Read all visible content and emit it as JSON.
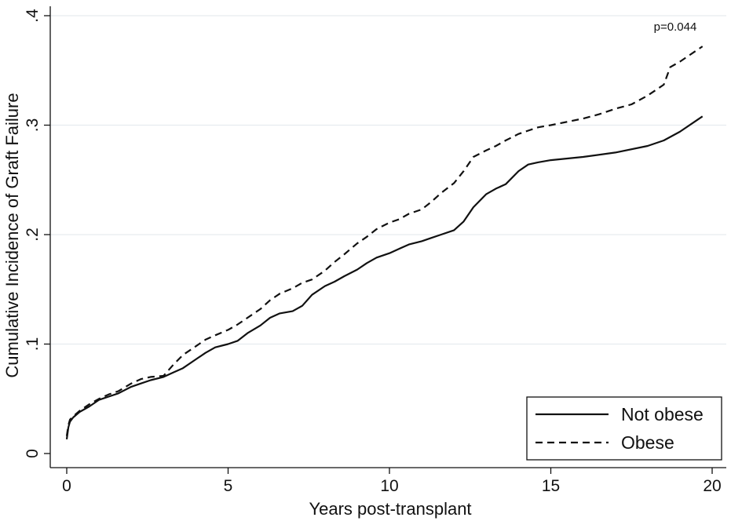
{
  "chart_data": {
    "type": "line",
    "title": "",
    "xlabel": "Years post-transplant",
    "ylabel": "Cumulative Incidence of Graft Failure",
    "xlim": [
      -0.1,
      20.5
    ],
    "ylim": [
      -0.01,
      0.42
    ],
    "x_ticks": [
      0,
      5,
      10,
      15,
      20
    ],
    "x_tick_labels": [
      "0",
      "5",
      "10",
      "15",
      "20"
    ],
    "y_ticks": [
      0,
      0.1,
      0.2,
      0.3,
      0.4
    ],
    "y_tick_labels": [
      "0",
      ".1",
      ".2",
      ".3",
      ".4"
    ],
    "grid": "horizontal",
    "legend_position": "bottom-right",
    "annotation": "p=0.044",
    "series": [
      {
        "name": "Not obese",
        "style": "solid",
        "x": [
          0,
          0.05,
          0.1,
          0.2,
          0.4,
          0.7,
          1.0,
          1.3,
          1.6,
          2.0,
          2.3,
          2.6,
          3.0,
          3.3,
          3.6,
          4.0,
          4.3,
          4.6,
          5.0,
          5.3,
          5.6,
          6.0,
          6.3,
          6.6,
          7.0,
          7.3,
          7.6,
          8.0,
          8.3,
          8.6,
          9.0,
          9.3,
          9.6,
          10.0,
          10.3,
          10.6,
          11.0,
          11.3,
          11.6,
          12.0,
          12.3,
          12.6,
          13.0,
          13.3,
          13.6,
          14.0,
          14.3,
          14.6,
          15.0,
          16.0,
          17.0,
          18.0,
          18.5,
          19.0,
          19.7
        ],
        "values": [
          0.013,
          0.024,
          0.029,
          0.033,
          0.038,
          0.043,
          0.049,
          0.052,
          0.055,
          0.061,
          0.064,
          0.067,
          0.07,
          0.074,
          0.078,
          0.086,
          0.092,
          0.097,
          0.1,
          0.103,
          0.11,
          0.117,
          0.124,
          0.128,
          0.13,
          0.135,
          0.145,
          0.153,
          0.157,
          0.162,
          0.168,
          0.174,
          0.179,
          0.183,
          0.187,
          0.191,
          0.194,
          0.197,
          0.2,
          0.204,
          0.212,
          0.225,
          0.237,
          0.242,
          0.246,
          0.258,
          0.264,
          0.266,
          0.268,
          0.271,
          0.275,
          0.281,
          0.286,
          0.294,
          0.308
        ]
      },
      {
        "name": "Obese",
        "style": "dashed",
        "x": [
          0,
          0.05,
          0.1,
          0.2,
          0.4,
          0.7,
          1.0,
          1.3,
          1.6,
          2.0,
          2.3,
          2.6,
          3.0,
          3.3,
          3.6,
          4.0,
          4.3,
          4.6,
          5.0,
          5.3,
          5.6,
          6.0,
          6.3,
          6.6,
          7.0,
          7.3,
          7.6,
          8.0,
          8.3,
          8.6,
          9.0,
          9.3,
          9.6,
          10.0,
          10.3,
          10.6,
          11.0,
          11.3,
          11.6,
          12.0,
          12.3,
          12.6,
          13.0,
          13.3,
          13.6,
          14.0,
          14.3,
          14.6,
          15.0,
          16.0,
          16.5,
          17.0,
          17.5,
          18.0,
          18.5,
          18.7,
          19.0,
          19.7
        ],
        "values": [
          0.016,
          0.026,
          0.031,
          0.034,
          0.039,
          0.045,
          0.05,
          0.054,
          0.057,
          0.064,
          0.068,
          0.07,
          0.071,
          0.081,
          0.09,
          0.098,
          0.104,
          0.108,
          0.113,
          0.118,
          0.124,
          0.132,
          0.14,
          0.146,
          0.151,
          0.156,
          0.159,
          0.167,
          0.175,
          0.182,
          0.192,
          0.198,
          0.205,
          0.211,
          0.214,
          0.219,
          0.223,
          0.23,
          0.238,
          0.247,
          0.258,
          0.271,
          0.277,
          0.281,
          0.286,
          0.292,
          0.295,
          0.298,
          0.3,
          0.306,
          0.31,
          0.315,
          0.319,
          0.327,
          0.337,
          0.353,
          0.358,
          0.372
        ]
      }
    ]
  }
}
